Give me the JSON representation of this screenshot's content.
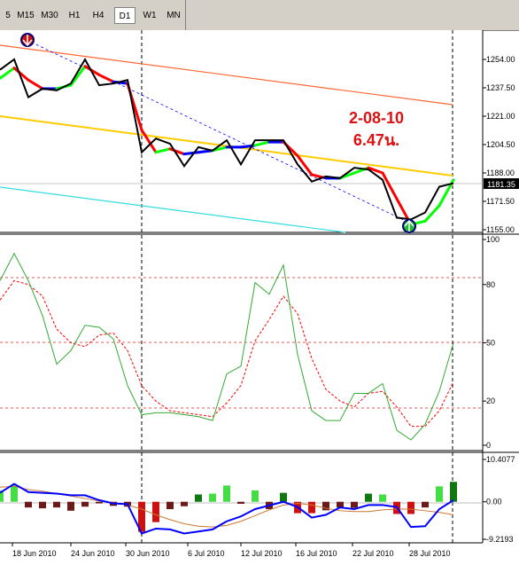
{
  "toolbar": {
    "timeframes": [
      {
        "label": "5",
        "active": false
      },
      {
        "label": "M15",
        "active": false
      },
      {
        "label": "M30",
        "active": false
      },
      {
        "label": "H1",
        "active": false
      },
      {
        "label": "H4",
        "active": false
      },
      {
        "label": "D1",
        "active": true
      },
      {
        "label": "W1",
        "active": false
      },
      {
        "label": "MN",
        "active": false
      }
    ]
  },
  "colors": {
    "bull": "#00cc00",
    "bear": "#990000",
    "up_segment": "#00ff00",
    "down_segment": "#ff0000",
    "neutral_segment": "#0000ff",
    "price_line": "#000000",
    "upper_channel": "#ff6633",
    "mid_channel": "#ffcc00",
    "lower_channel": "#33dddd",
    "stoch_main": "#33aa33",
    "stoch_signal": "#ff0000",
    "osc_line": "#0000ff",
    "osc_signal": "#cc7733"
  },
  "annotation": {
    "date": "2-08-10",
    "time": "6.47น."
  },
  "price_axis": {
    "ticks": [
      "1254.00",
      "1237.50",
      "1221.00",
      "1204.50",
      "1188.00",
      "1171.50",
      "1155.00"
    ],
    "current": "1181.35"
  },
  "stoch_axis": {
    "ticks": [
      "100",
      "80",
      "50",
      "20",
      "0"
    ]
  },
  "osc_axis": {
    "ticks": [
      "10.4077",
      "0.00",
      "-9.2193"
    ]
  },
  "time_axis": {
    "labels": [
      "18 Jun 2010",
      "24 Jun 2010",
      "30 Jun 2010",
      "6 Jul 2010",
      "12 Jul 2010",
      "16 Jul 2010",
      "22 Jul 2010",
      "28 Jul 2010"
    ]
  },
  "chart_data": [
    {
      "type": "line",
      "title": "",
      "ylim": [
        1155.0,
        1262.0
      ],
      "series": [
        {
          "values": [
            1248,
            1254,
            1232,
            1237,
            1236,
            1240,
            1254,
            1239,
            1240,
            1242,
            1200,
            1208,
            1205,
            1192,
            1203,
            1201,
            1207,
            1193,
            1207,
            1207,
            1207,
            1193,
            1183,
            1186,
            1185,
            1191,
            1190,
            1184,
            1162,
            1161,
            1165,
            1180,
            1182
          ]
        },
        {
          "values": [
            1243,
            1249,
            1242,
            1237,
            1237,
            1239,
            1250,
            1245,
            1241,
            1240,
            1213,
            1200,
            1202,
            1199,
            1200,
            1201,
            1203,
            1203,
            1204,
            1206,
            1206,
            1198,
            1187,
            1185,
            1185,
            1188,
            1191,
            1188,
            1173,
            1158,
            1160,
            1169,
            1184
          ]
        }
      ]
    },
    {
      "type": "line",
      "title": "",
      "ylim": [
        0,
        100
      ],
      "series": [
        {
          "values": [
            82,
            96,
            82,
            64,
            39,
            46,
            59,
            58,
            52,
            28,
            13,
            14,
            14,
            13,
            12,
            10,
            34,
            38,
            81,
            75,
            90,
            44,
            15,
            10,
            10,
            24,
            24,
            29,
            5,
            0,
            8,
            25,
            50
          ]
        },
        {
          "values": [
            72,
            82,
            80,
            74,
            57,
            50,
            48,
            54,
            55,
            46,
            28,
            20,
            15,
            14,
            13,
            12,
            19,
            28,
            51,
            62,
            74,
            65,
            42,
            26,
            20,
            17,
            24,
            25,
            17,
            7,
            7,
            15,
            30
          ]
        }
      ]
    },
    {
      "type": "bar",
      "title": "",
      "ylim": [
        -9.2193,
        10.4077
      ],
      "series": [
        {
          "values": [
            2.8,
            4.2,
            -1.4,
            -1.6,
            -1.4,
            -2.2,
            -1.2,
            -0.4,
            -1.0,
            -1.2,
            -7.4,
            -5.0,
            -1.8,
            -1.1,
            1.8,
            2.0,
            4.0,
            -0.5,
            2.8,
            -1.8,
            2.2,
            -2.8,
            -2.8,
            -2.1,
            -1.4,
            -1.5,
            2.0,
            1.8,
            -3.0,
            -3.0,
            -1.4,
            3.8,
            4.9
          ]
        },
        {
          "values": [
            2.2,
            4.4,
            2.4,
            2.2,
            2.0,
            1.6,
            1.6,
            0.4,
            -0.4,
            -0.6,
            -7.8,
            -6.6,
            -6.8,
            -7.8,
            -7.3,
            -6.8,
            -4.8,
            -3.6,
            -1.8,
            -0.9,
            0.0,
            -1.3,
            -3.9,
            -3.2,
            -1.4,
            -1.8,
            -0.8,
            -0.8,
            -1.3,
            -6.2,
            -6.0,
            -1.8,
            0.4
          ]
        },
        {
          "values": [
            3.6,
            3.8,
            3.0,
            2.6,
            2.0,
            1.4,
            0.8,
            0.2,
            -0.2,
            -0.8,
            -1.8,
            -3.2,
            -4.4,
            -5.4,
            -6.0,
            -6.2,
            -5.8,
            -4.8,
            -3.4,
            -2.0,
            -0.8,
            -0.4,
            -0.8,
            -1.6,
            -2.2,
            -2.4,
            -2.4,
            -2.0,
            -1.8,
            -1.8,
            -2.2,
            -2.6,
            -3.2
          ]
        }
      ]
    }
  ]
}
